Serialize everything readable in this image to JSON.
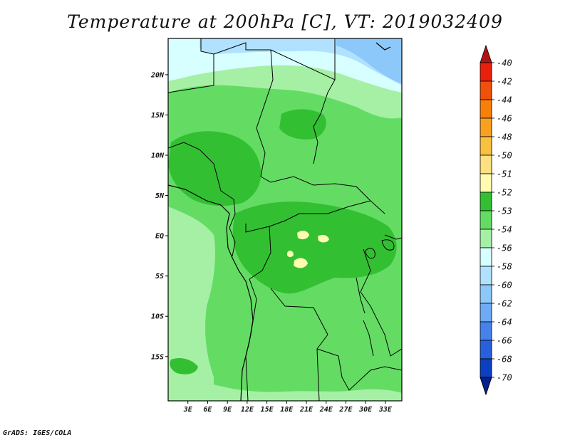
{
  "title": "Temperature at 200hPa [C], VT: 2019032409",
  "credit": "GrADS: IGES/COLA",
  "map": {
    "lon_range": [
      0,
      35.5
    ],
    "lat_range": [
      -20.5,
      24.5
    ],
    "lon_ticks": [
      "3E",
      "6E",
      "9E",
      "12E",
      "15E",
      "18E",
      "21E",
      "24E",
      "27E",
      "30E",
      "33E"
    ],
    "lat_ticks": [
      "20N",
      "15N",
      "10N",
      "5N",
      "EQ",
      "5S",
      "10S",
      "15S"
    ]
  },
  "colorbar": {
    "levels": [
      "-40",
      "-42",
      "-44",
      "-46",
      "-48",
      "-50",
      "-51",
      "-52",
      "-53",
      "-54",
      "-56",
      "-58",
      "-60",
      "-62",
      "-64",
      "-66",
      "-68",
      "-70"
    ],
    "colors": [
      "#e8200c",
      "#f0500a",
      "#f77f0a",
      "#f9a020",
      "#fac040",
      "#fde080",
      "#fffbb0",
      "#32c032",
      "#64dc64",
      "#a6f0a6",
      "#d8ffff",
      "#b0e2ff",
      "#8cc8fa",
      "#6eaaf5",
      "#4682eb",
      "#2760db",
      "#0c40c0",
      "#04208c"
    ],
    "top_arrow_color": "#b01414",
    "bottom_arrow_color": "#e0e0f8"
  }
}
